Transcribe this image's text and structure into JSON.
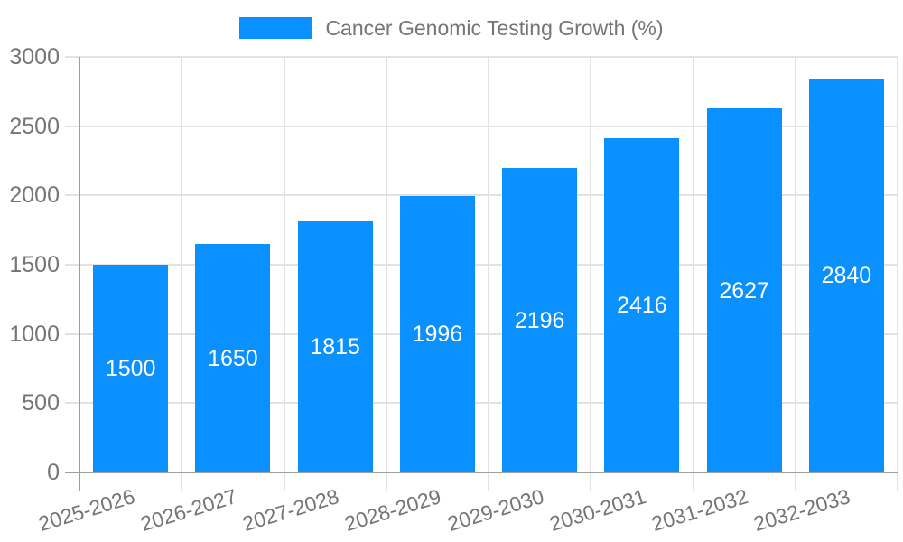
{
  "chart_data": {
    "type": "bar",
    "title": "Cancer Genomic Testing Growth (%)",
    "legend": {
      "position": "top",
      "label": "Cancer Genomic Testing Growth (%)"
    },
    "categories": [
      "2025-2026",
      "2026-2027",
      "2027-2028",
      "2028-2029",
      "2029-2030",
      "2030-2031",
      "2031-2032",
      "2032-2033"
    ],
    "series": [
      {
        "name": "Cancer Genomic Testing Growth (%)",
        "values": [
          1500,
          1650,
          1815,
          1996,
          2196,
          2416,
          2627,
          2840
        ]
      }
    ],
    "bar_labels": [
      "1500",
      "1650",
      "1815",
      "1996",
      "2196",
      "2416",
      "2627",
      "2840"
    ],
    "xlabel": "",
    "ylabel": "",
    "ylim": [
      0,
      3000
    ],
    "yticks": [
      0,
      500,
      1000,
      1500,
      2000,
      2500,
      3000
    ],
    "grid": true,
    "colors": {
      "bar": "#0a90ff",
      "bar_label_text": "#ffffff",
      "axis_text": "#757575",
      "gridline": "#e2e2e2",
      "axis_line": "#9e9e9e"
    }
  }
}
